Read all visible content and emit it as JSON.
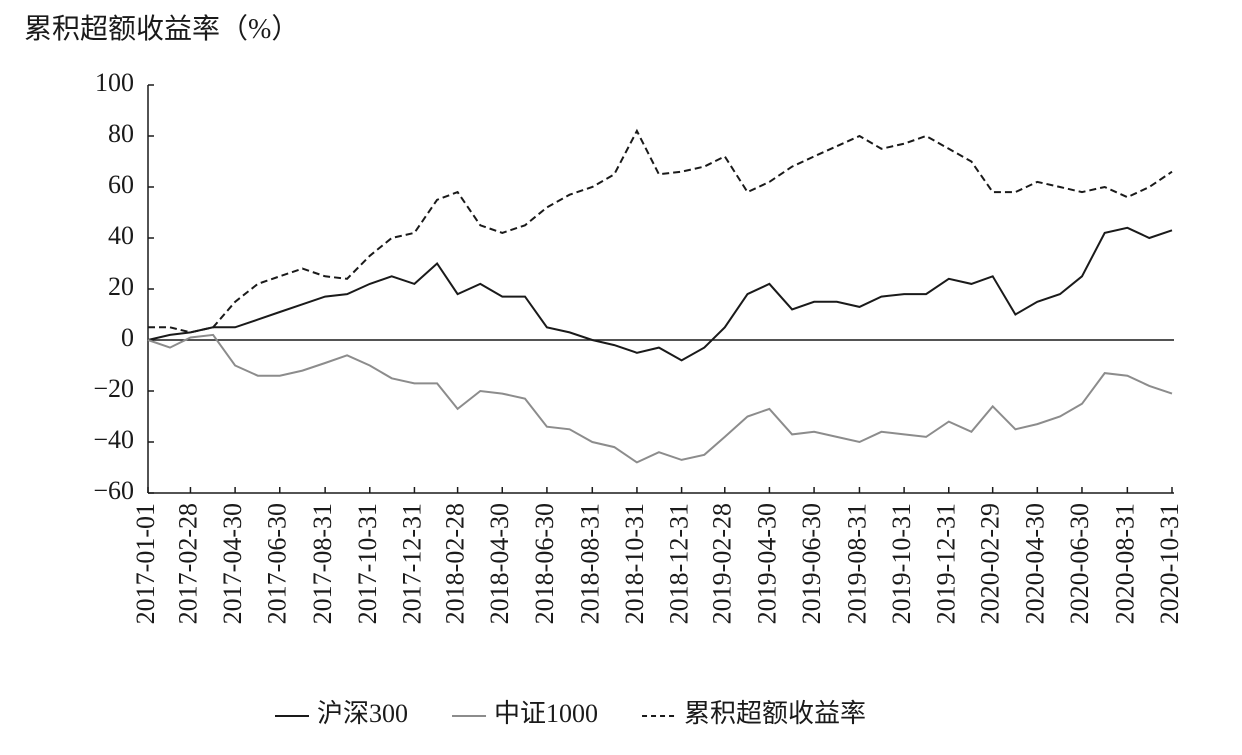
{
  "chart_data": {
    "type": "line",
    "title": "累积超额收益率（%）",
    "x": [
      "2017-01-01",
      "2017-01-31",
      "2017-02-28",
      "2017-03-31",
      "2017-04-30",
      "2017-05-31",
      "2017-06-30",
      "2017-07-31",
      "2017-08-31",
      "2017-09-30",
      "2017-10-31",
      "2017-11-30",
      "2017-12-31",
      "2018-01-31",
      "2018-02-28",
      "2018-03-31",
      "2018-04-30",
      "2018-05-31",
      "2018-06-30",
      "2018-07-31",
      "2018-08-31",
      "2018-09-30",
      "2018-10-31",
      "2018-11-30",
      "2018-12-31",
      "2019-01-31",
      "2019-02-28",
      "2019-03-31",
      "2019-04-30",
      "2019-05-31",
      "2019-06-30",
      "2019-07-31",
      "2019-08-31",
      "2019-09-30",
      "2019-10-31",
      "2019-11-30",
      "2019-12-31",
      "2020-01-31",
      "2020-02-29",
      "2020-03-31",
      "2020-04-30",
      "2020-05-31",
      "2020-06-30",
      "2020-07-31",
      "2020-08-31",
      "2020-09-30",
      "2020-10-31"
    ],
    "series": [
      {
        "name": "沪深300",
        "color": "#1a1a1a",
        "style": "solid",
        "values": [
          0,
          2,
          3,
          5,
          5,
          8,
          11,
          14,
          17,
          18,
          22,
          25,
          22,
          30,
          18,
          22,
          17,
          17,
          5,
          3,
          0,
          -2,
          -5,
          -3,
          -8,
          -3,
          5,
          18,
          22,
          12,
          15,
          15,
          13,
          17,
          18,
          18,
          24,
          22,
          25,
          10,
          15,
          18,
          25,
          42,
          44,
          40,
          43
        ]
      },
      {
        "name": "中证1000",
        "color": "#8c8c8c",
        "style": "solid",
        "values": [
          0,
          -3,
          1,
          2,
          -10,
          -14,
          -14,
          -12,
          -9,
          -6,
          -10,
          -15,
          -17,
          -17,
          -27,
          -20,
          -21,
          -23,
          -34,
          -35,
          -40,
          -42,
          -48,
          -44,
          -47,
          -45,
          -38,
          -30,
          -27,
          -37,
          -36,
          -38,
          -40,
          -36,
          -37,
          -38,
          -32,
          -36,
          -26,
          -35,
          -33,
          -30,
          -25,
          -13,
          -14,
          -18,
          -21
        ]
      },
      {
        "name": "累积超额收益率",
        "color": "#1a1a1a",
        "style": "dashed",
        "values": [
          5,
          5,
          3,
          5,
          15,
          22,
          25,
          28,
          25,
          24,
          33,
          40,
          42,
          55,
          58,
          45,
          42,
          45,
          52,
          57,
          60,
          65,
          82,
          65,
          66,
          68,
          72,
          58,
          62,
          68,
          72,
          76,
          80,
          75,
          77,
          80,
          75,
          70,
          58,
          58,
          62,
          60,
          58,
          60,
          56,
          60,
          66
        ]
      }
    ],
    "xlim": [
      "2017-01-01",
      "2020-10-31"
    ],
    "xticks": [
      "2017-01-01",
      "2017-02-28",
      "2017-04-30",
      "2017-06-30",
      "2017-08-31",
      "2017-10-31",
      "2017-12-31",
      "2018-02-28",
      "2018-04-30",
      "2018-06-30",
      "2018-08-31",
      "2018-10-31",
      "2018-12-31",
      "2019-02-28",
      "2019-04-30",
      "2019-06-30",
      "2019-08-31",
      "2019-10-31",
      "2019-12-31",
      "2020-02-29",
      "2020-04-30",
      "2020-06-30",
      "2020-08-31",
      "2020-10-31"
    ],
    "ylim": [
      -60,
      100
    ],
    "yticks": [
      {
        "value": -60,
        "label": "−60"
      },
      {
        "value": -40,
        "label": "−40"
      },
      {
        "value": -20,
        "label": "−20"
      },
      0,
      20,
      40,
      60,
      80,
      100
    ],
    "legend": "bottom"
  }
}
